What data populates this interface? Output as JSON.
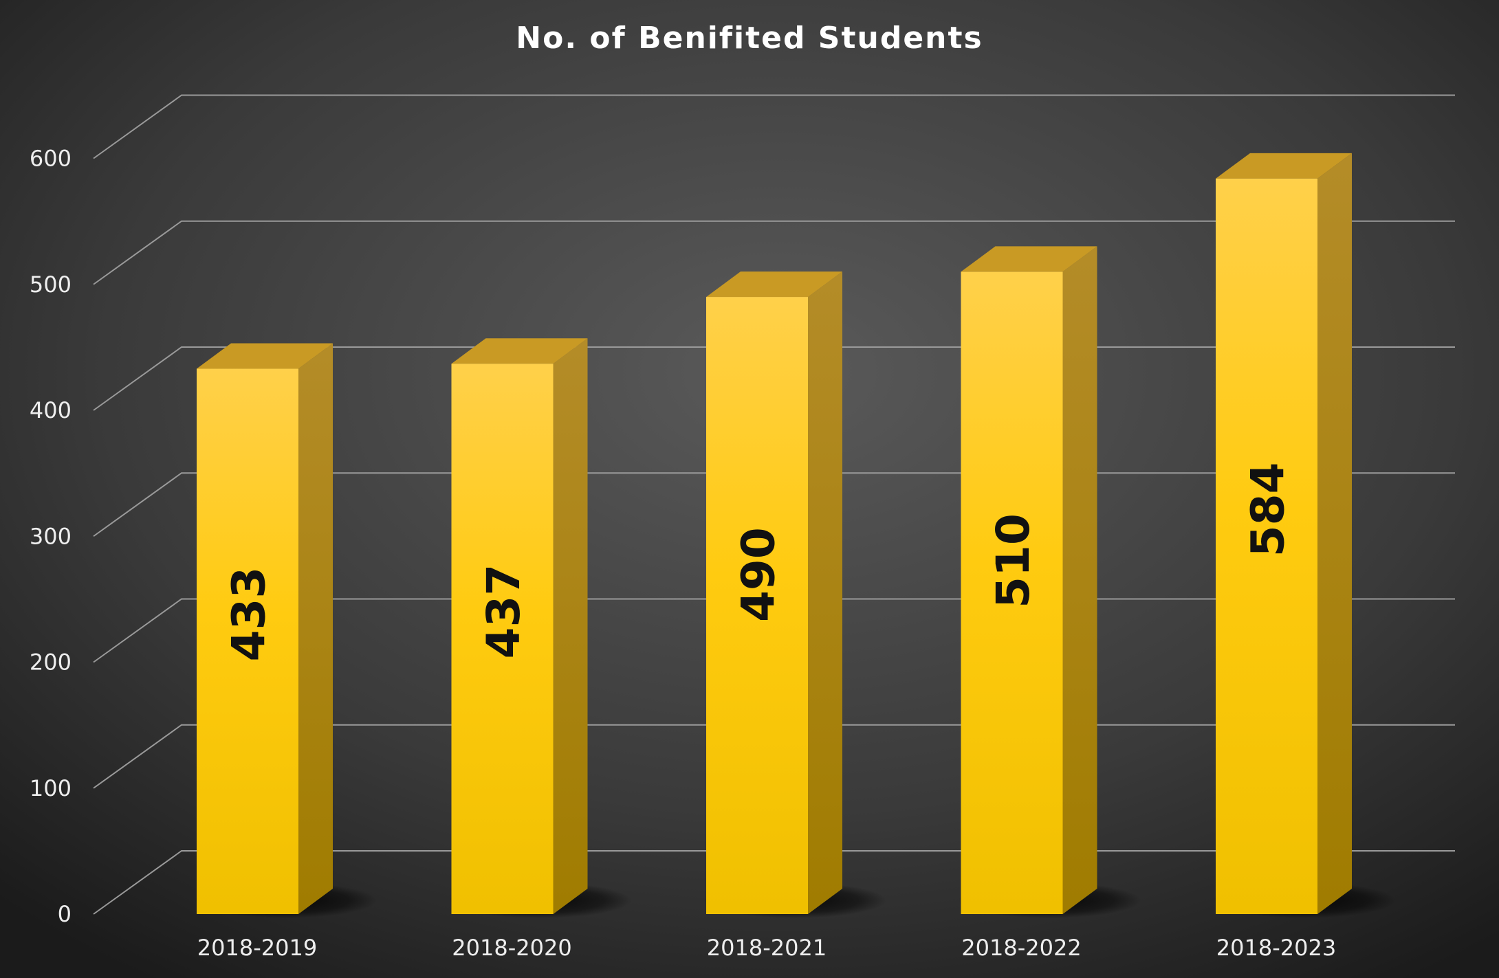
{
  "chart_data": {
    "type": "bar",
    "title": "No. of Benifited Students",
    "categories": [
      "2018-2019",
      "2018-2020",
      "2018-2021",
      "2018-2022",
      "2018-2023"
    ],
    "values": [
      433,
      437,
      490,
      510,
      584
    ],
    "xlabel": "",
    "ylabel": "",
    "ylim": [
      0,
      600
    ],
    "yticks": [
      "0",
      "100",
      "200",
      "300",
      "400",
      "500",
      "600"
    ],
    "grid": true,
    "legend": "none",
    "three_d": true,
    "data_labels": "inside-vertical",
    "colors": {
      "background": "#3a3a3a",
      "bar_front": "#ffc400",
      "bar_side": "#a8830f",
      "bar_top": "#c99a24",
      "gridline": "#9a9a9a",
      "text": "#eeeeee",
      "data_label": "#111111"
    }
  }
}
